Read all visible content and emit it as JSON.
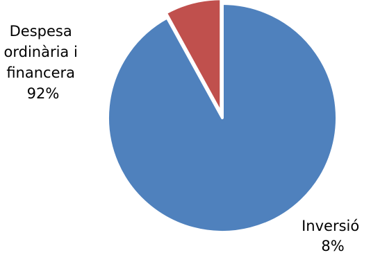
{
  "chart_data": {
    "type": "pie",
    "title": "",
    "slices": [
      {
        "label": "Despesa ordinària i financera",
        "value": 92,
        "value_label": "92%",
        "color": "#4F81BD"
      },
      {
        "label": "Inversió",
        "value": 8,
        "value_label": "8%",
        "color": "#C0504D"
      }
    ],
    "legend": "none",
    "slice_border_color": "#FFFFFF",
    "start_angle": "12 o'clock",
    "direction": "clockwise",
    "exploded_slice": "Inversió"
  }
}
